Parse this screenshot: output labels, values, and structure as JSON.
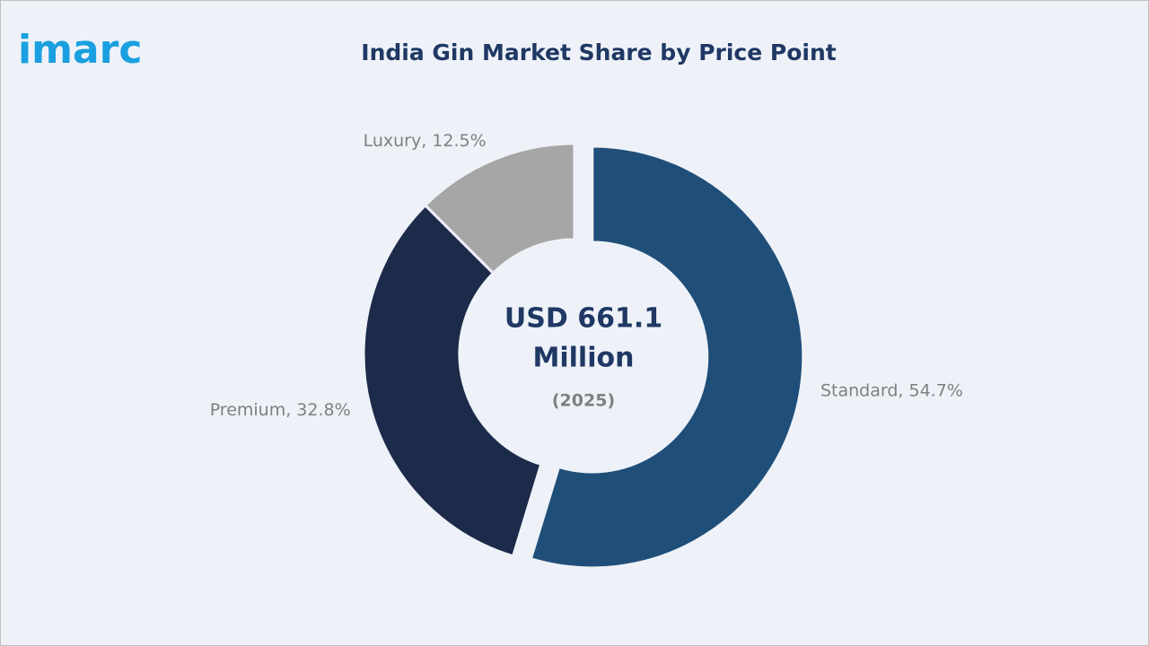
{
  "logo": "imarc",
  "chart_data": {
    "type": "donut",
    "title": "India Gin Market Share by Price Point",
    "center_label": "USD 661.1",
    "center_label_line2": "Million",
    "center_sublabel": "(2025)",
    "values": [
      54.7,
      32.8,
      12.5
    ],
    "value_labels": [
      "Standard, 54.7%",
      "Premium, 32.8%",
      "Luxury, 12.5%"
    ],
    "colors": [
      "#1f4e79",
      "#1c2b4a",
      "#a6a6a6"
    ],
    "exploded": [
      true,
      false,
      false
    ]
  }
}
